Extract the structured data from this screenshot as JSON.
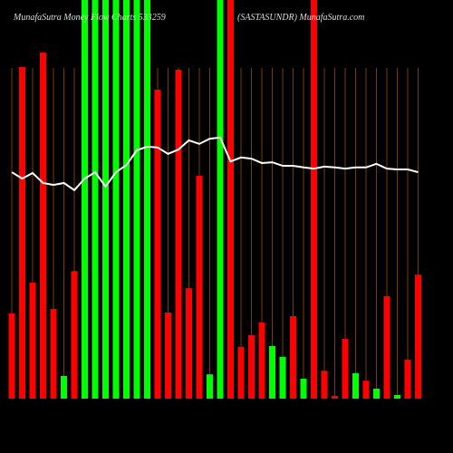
{
  "chart_data": {
    "type": "bar",
    "title": "MunafaSutra  Money Flow  Charts 533259",
    "subtitle": "(SASTASUNDR) MunafaSutra.com",
    "ylim": [
      0,
      100
    ],
    "values": [
      21.4,
      83.2,
      29.1,
      86.8,
      22.5,
      5.7,
      32,
      100,
      100,
      100,
      100,
      100,
      100,
      100,
      77.5,
      21.6,
      82.5,
      27.7,
      55.9,
      6.1,
      100,
      100,
      13,
      15.9,
      19.1,
      13.2,
      10.5,
      20.7,
      5,
      100,
      7,
      0.7,
      15,
      6.4,
      4.5,
      2.5,
      25.7,
      0.9,
      9.8,
      31.1
    ],
    "colors": [
      "#ff0000",
      "#ff0000",
      "#ff0000",
      "#ff0000",
      "#ff0000",
      "#00ff00",
      "#ff0000",
      "#00ff00",
      "#00ff00",
      "#00ff00",
      "#00ff00",
      "#00ff00",
      "#00ff00",
      "#00ff00",
      "#ff0000",
      "#ff0000",
      "#ff0000",
      "#ff0000",
      "#ff0000",
      "#00ff00",
      "#00ff00",
      "#ff0000",
      "#ff0000",
      "#ff0000",
      "#ff0000",
      "#00ff00",
      "#00ff00",
      "#ff0000",
      "#00ff00",
      "#ff0000",
      "#ff0000",
      "#ff0000",
      "#ff0000",
      "#00ff00",
      "#ff0000",
      "#00ff00",
      "#ff0000",
      "#00ff00",
      "#ff0000",
      "#ff0000"
    ],
    "line": {
      "color": "#ffffff",
      "values": [
        56.8,
        55.2,
        56.6,
        54.1,
        53.6,
        54.1,
        52.3,
        55.2,
        56.8,
        53.2,
        56.8,
        58.6,
        62.3,
        63.2,
        63,
        61.4,
        62.5,
        64.8,
        63.9,
        65.2,
        65.5,
        59.5,
        60.5,
        60.2,
        59.1,
        59.3,
        58.4,
        58.4,
        58,
        57.7,
        58.2,
        58,
        57.7,
        58,
        58,
        58.9,
        57.7,
        57.5,
        57.5,
        56.8
      ]
    }
  }
}
